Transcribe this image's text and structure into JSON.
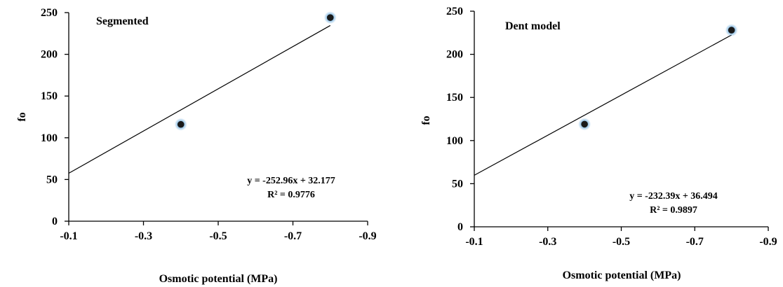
{
  "chart_data": [
    {
      "type": "scatter",
      "title": "Segmented",
      "xlabel": "Osmotic potential (MPa)",
      "ylabel": "fo",
      "xlim": [
        -0.1,
        -0.9
      ],
      "ylim": [
        0,
        250
      ],
      "x_ticks": [
        "-0.1",
        "-0.3",
        "-0.5",
        "-0.7",
        "-0.9"
      ],
      "y_ticks": [
        "0",
        "50",
        "100",
        "150",
        "200",
        "250"
      ],
      "series": [
        {
          "x": [
            -0.4,
            -0.8
          ],
          "y": [
            116,
            244
          ]
        }
      ],
      "trendline": {
        "slope": -252.96,
        "intercept": 32.177
      },
      "annotations": [
        "y = -252.96x + 32.177",
        "R² = 0.9776"
      ],
      "grid": false,
      "marker_color": "#1a1a1a",
      "marker_glow": "#7ab4e0"
    },
    {
      "type": "scatter",
      "title": "Dent model",
      "xlabel": "Osmotic potential (MPa)",
      "ylabel": "fo",
      "xlim": [
        -0.1,
        -0.9
      ],
      "ylim": [
        0,
        250
      ],
      "x_ticks": [
        "-0.1",
        "-0.3",
        "-0.5",
        "-0.7",
        "-0.9"
      ],
      "y_ticks": [
        "0",
        "50",
        "100",
        "150",
        "200",
        "250"
      ],
      "series": [
        {
          "x": [
            -0.4,
            -0.8
          ],
          "y": [
            119,
            228
          ]
        }
      ],
      "trendline": {
        "slope": -232.39,
        "intercept": 36.494
      },
      "annotations": [
        "y = -232.39x + 36.494",
        "R² = 0.9897"
      ],
      "grid": false,
      "marker_color": "#1a1a1a",
      "marker_glow": "#7ab4e0"
    }
  ]
}
